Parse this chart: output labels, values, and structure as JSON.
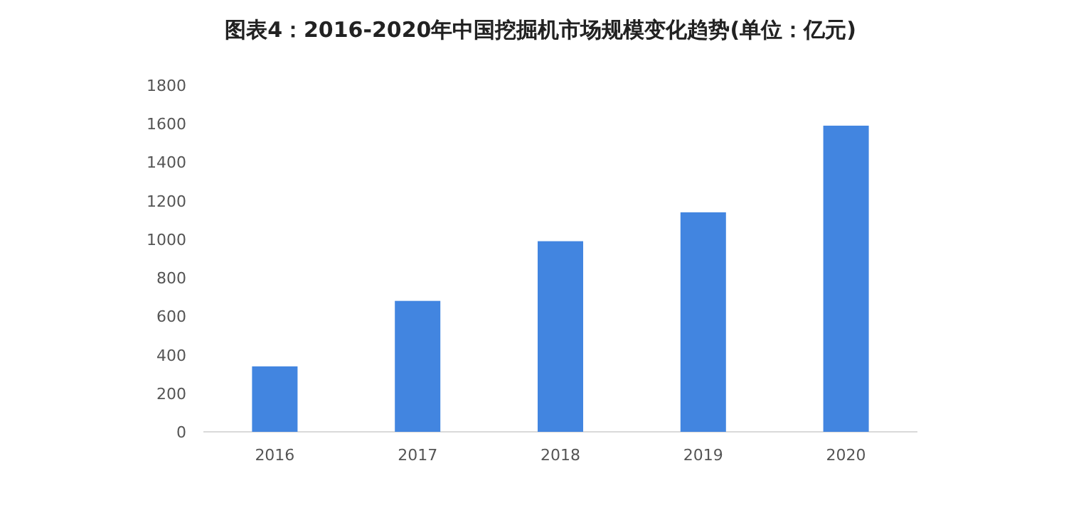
{
  "chart_data": {
    "type": "bar",
    "title": "图表4：2016-2020年中国挖掘机市场规模变化趋势(单位：亿元)",
    "categories": [
      "2016",
      "2017",
      "2018",
      "2019",
      "2020"
    ],
    "values": [
      340,
      680,
      990,
      1140,
      1590
    ],
    "color": "#4285e0",
    "ylim": [
      0,
      1800
    ],
    "yticks": [
      0,
      200,
      400,
      600,
      800,
      1000,
      1200,
      1400,
      1600,
      1800
    ],
    "grid": false
  }
}
